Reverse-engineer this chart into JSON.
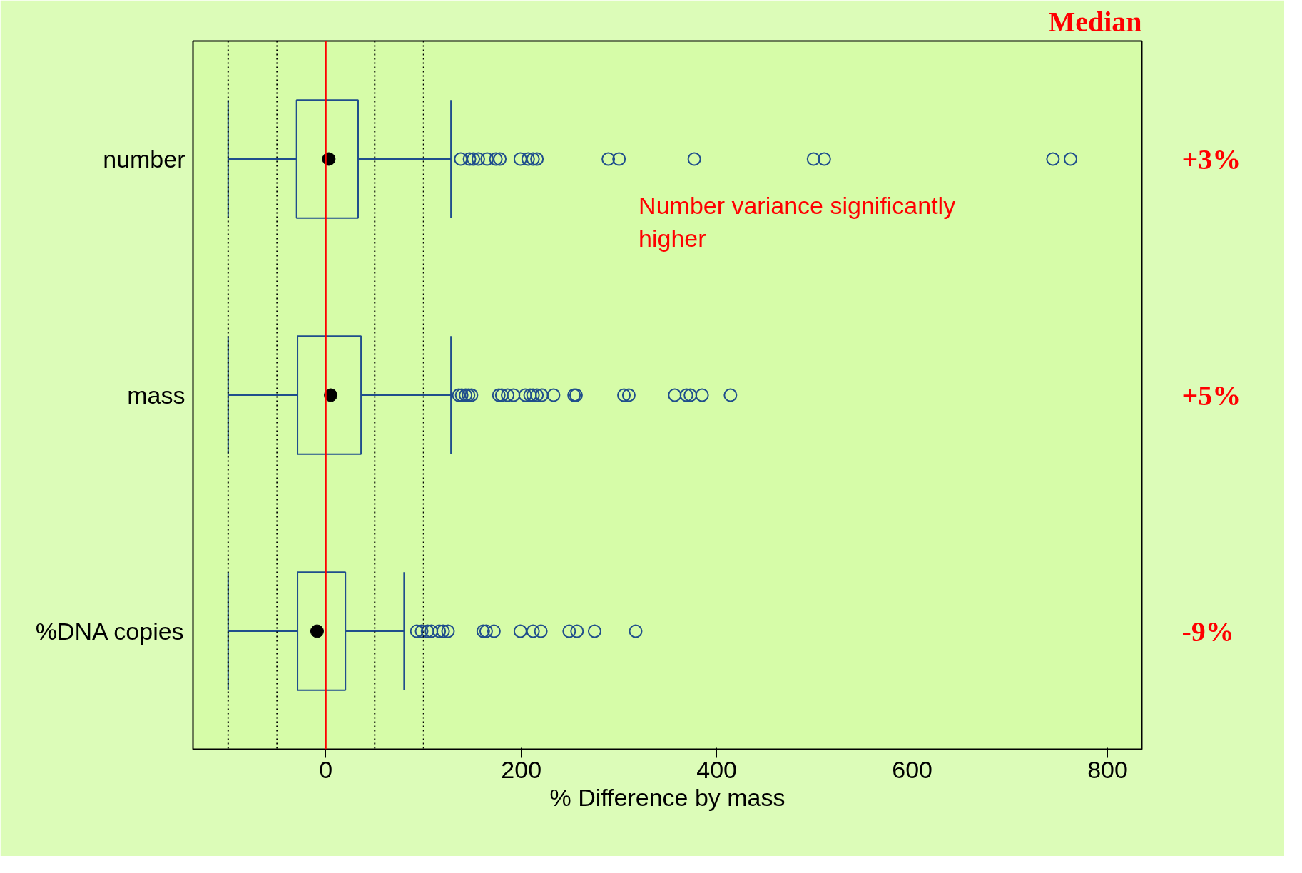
{
  "chart_data": {
    "type": "box",
    "orientation": "horizontal",
    "xlabel": "% Difference by mass",
    "categories": [
      "number",
      "mass",
      "%DNA copies"
    ],
    "series": [
      {
        "color": "#1f4e8c",
        "boxes": [
          {
            "low": -100,
            "q1": -30,
            "median": 3,
            "q3": 33,
            "high": 128,
            "outliers": [
              138,
              147,
              151,
              156,
              165,
              174,
              178,
              199,
              207,
              212,
              216,
              289,
              300,
              377,
              499,
              510,
              744,
              762
            ]
          },
          {
            "low": -100,
            "q1": -29,
            "median": 5,
            "q3": 36,
            "high": 128,
            "outliers": [
              136,
              139,
              143,
              146,
              149,
              177,
              180,
              186,
              192,
              204,
              209,
              212,
              216,
              221,
              233,
              254,
              256,
              305,
              310,
              357,
              369,
              373,
              385,
              414
            ]
          },
          {
            "low": -100,
            "q1": -29,
            "median": -9,
            "q3": 20,
            "high": 80,
            "outliers": [
              93,
              98,
              104,
              108,
              116,
              120,
              125,
              161,
              164,
              172,
              199,
              212,
              220,
              249,
              257,
              275,
              317
            ]
          }
        ]
      }
    ],
    "xlim": [
      -136,
      835
    ],
    "xticks": [
      0,
      200,
      400,
      600,
      800
    ],
    "grid": false,
    "marker": "circle",
    "ref_lines": [
      {
        "axis": "x",
        "value": -100,
        "color": "#000000",
        "line_style": "dotted"
      },
      {
        "axis": "x",
        "value": -50,
        "color": "#000000",
        "line_style": "dotted"
      },
      {
        "axis": "x",
        "value": 50,
        "color": "#000000",
        "line_style": "dotted"
      },
      {
        "axis": "x",
        "value": 100,
        "color": "#000000",
        "line_style": "dotted"
      },
      {
        "axis": "x",
        "value": 0,
        "color": "#ff0000",
        "line_style": "solid"
      }
    ],
    "annotations": [
      "Median",
      "Number variance significantly\nhigher",
      "+3%",
      "+5%",
      "-9%"
    ]
  }
}
